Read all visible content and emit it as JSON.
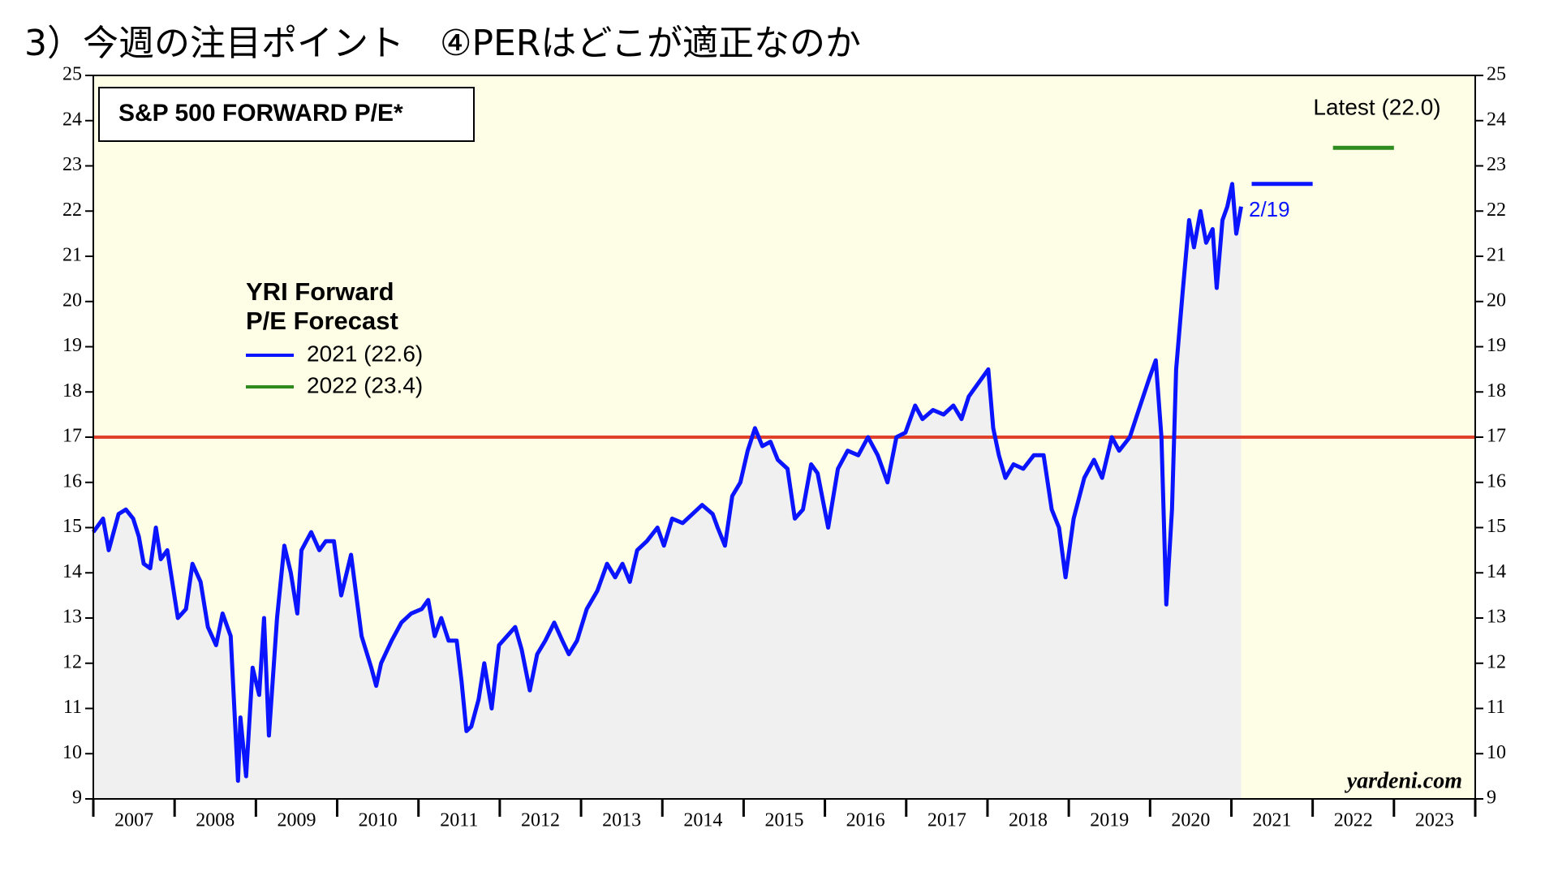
{
  "header": "3）今週の注目ポイント　④PERはどこが適正なのか",
  "chart_data": {
    "type": "line",
    "title": "S&P 500 FORWARD P/E*",
    "xlim": [
      2007,
      2024
    ],
    "x_boundaries": [
      2007,
      2008,
      2009,
      2010,
      2011,
      2012,
      2013,
      2014,
      2015,
      2016,
      2017,
      2018,
      2019,
      2020,
      2021,
      2022,
      2023,
      2024
    ],
    "xticks": [
      {
        "value": 2007.5,
        "label": "2007"
      },
      {
        "value": 2008.5,
        "label": "2008"
      },
      {
        "value": 2009.5,
        "label": "2009"
      },
      {
        "value": 2010.5,
        "label": "2010"
      },
      {
        "value": 2011.5,
        "label": "2011"
      },
      {
        "value": 2012.5,
        "label": "2012"
      },
      {
        "value": 2013.5,
        "label": "2013"
      },
      {
        "value": 2014.5,
        "label": "2014"
      },
      {
        "value": 2015.5,
        "label": "2015"
      },
      {
        "value": 2016.5,
        "label": "2016"
      },
      {
        "value": 2017.5,
        "label": "2017"
      },
      {
        "value": 2018.5,
        "label": "2018"
      },
      {
        "value": 2019.5,
        "label": "2019"
      },
      {
        "value": 2020.5,
        "label": "2020"
      },
      {
        "value": 2021.5,
        "label": "2021"
      },
      {
        "value": 2022.5,
        "label": "2022"
      },
      {
        "value": 2023.5,
        "label": "2023"
      }
    ],
    "ylim": [
      9,
      25
    ],
    "yticks": [
      9,
      10,
      11,
      12,
      13,
      14,
      15,
      16,
      17,
      18,
      19,
      20,
      21,
      22,
      23,
      24,
      25
    ],
    "reference_line": {
      "value": 17,
      "color": "#e0412a"
    },
    "series": [
      {
        "color": "#0a14ff",
        "x": [
          2007.0,
          2007.12,
          2007.19,
          2007.31,
          2007.4,
          2007.49,
          2007.56,
          2007.62,
          2007.7,
          2007.77,
          2007.83,
          2007.91,
          2008.04,
          2008.14,
          2008.22,
          2008.32,
          2008.41,
          2008.51,
          2008.59,
          2008.69,
          2008.78,
          2008.81,
          2008.88,
          2008.96,
          2009.04,
          2009.1,
          2009.16,
          2009.26,
          2009.35,
          2009.43,
          2009.51,
          2009.56,
          2009.68,
          2009.78,
          2009.86,
          2009.96,
          2010.05,
          2010.17,
          2010.3,
          2010.42,
          2010.48,
          2010.54,
          2010.67,
          2010.79,
          2010.91,
          2011.04,
          2011.12,
          2011.2,
          2011.28,
          2011.37,
          2011.47,
          2011.53,
          2011.59,
          2011.65,
          2011.74,
          2011.81,
          2011.9,
          2011.99,
          2012.09,
          2012.19,
          2012.27,
          2012.37,
          2012.46,
          2012.56,
          2012.67,
          2012.77,
          2012.85,
          2012.95,
          2013.07,
          2013.2,
          2013.32,
          2013.42,
          2013.51,
          2013.6,
          2013.69,
          2013.81,
          2013.94,
          2014.02,
          2014.12,
          2014.25,
          2014.37,
          2014.49,
          2014.62,
          2014.68,
          2014.77,
          2014.86,
          2014.96,
          2015.05,
          2015.14,
          2015.23,
          2015.33,
          2015.42,
          2015.54,
          2015.63,
          2015.73,
          2015.83,
          2015.91,
          2016.04,
          2016.16,
          2016.28,
          2016.41,
          2016.53,
          2016.65,
          2016.77,
          2016.88,
          2016.99,
          2017.11,
          2017.2,
          2017.33,
          2017.46,
          2017.58,
          2017.68,
          2017.77,
          2017.89,
          2018.01,
          2018.07,
          2018.14,
          2018.22,
          2018.32,
          2018.44,
          2018.57,
          2018.69,
          2018.79,
          2018.88,
          2018.96,
          2019.06,
          2019.19,
          2019.31,
          2019.41,
          2019.53,
          2019.62,
          2019.75,
          2019.86,
          2019.99,
          2020.07,
          2020.14,
          2020.2,
          2020.27,
          2020.32,
          2020.4,
          2020.48,
          2020.54,
          2020.62,
          2020.69,
          2020.77,
          2020.82,
          2020.89,
          2020.95,
          2021.01,
          2021.06,
          2021.12
        ],
        "values": [
          14.9,
          15.2,
          14.5,
          15.3,
          15.4,
          15.2,
          14.8,
          14.2,
          14.1,
          15.0,
          14.3,
          14.5,
          13.0,
          13.2,
          14.2,
          13.8,
          12.8,
          12.4,
          13.1,
          12.6,
          9.4,
          10.8,
          9.5,
          11.9,
          11.3,
          13.0,
          10.4,
          13.0,
          14.6,
          14.0,
          13.1,
          14.5,
          14.9,
          14.5,
          14.7,
          14.7,
          13.5,
          14.4,
          12.6,
          11.9,
          11.5,
          12.0,
          12.5,
          12.9,
          13.1,
          13.2,
          13.4,
          12.6,
          13.0,
          12.5,
          12.5,
          11.6,
          10.5,
          10.6,
          11.2,
          12.0,
          11.0,
          12.4,
          12.6,
          12.8,
          12.3,
          11.4,
          12.2,
          12.5,
          12.9,
          12.5,
          12.2,
          12.5,
          13.2,
          13.6,
          14.2,
          13.9,
          14.2,
          13.8,
          14.5,
          14.7,
          15.0,
          14.6,
          15.2,
          15.1,
          15.3,
          15.5,
          15.3,
          15.0,
          14.6,
          15.7,
          16.0,
          16.7,
          17.2,
          16.8,
          16.9,
          16.5,
          16.3,
          15.2,
          15.4,
          16.4,
          16.2,
          15.0,
          16.3,
          16.7,
          16.6,
          17.0,
          16.6,
          16.0,
          17.0,
          17.1,
          17.7,
          17.4,
          17.6,
          17.5,
          17.7,
          17.4,
          17.9,
          18.2,
          18.5,
          17.2,
          16.6,
          16.1,
          16.4,
          16.3,
          16.6,
          16.6,
          15.4,
          15.0,
          13.9,
          15.2,
          16.1,
          16.5,
          16.1,
          17.0,
          16.7,
          17.0,
          17.6,
          18.3,
          18.7,
          17.0,
          13.3,
          15.4,
          18.5,
          20.2,
          21.8,
          21.2,
          22.0,
          21.3,
          21.6,
          20.3,
          21.8,
          22.1,
          22.6,
          21.5,
          22.1
        ]
      }
    ],
    "legend_title": [
      "YRI Forward",
      "P/E Forecast"
    ],
    "forecasts": [
      {
        "name": "2021 (22.6)",
        "color": "#0a14ff",
        "value": 22.6,
        "x": [
          2021.25,
          2022.0
        ]
      },
      {
        "name": "2022 (23.4)",
        "color": "#2e8b1e",
        "value": 23.4,
        "x": [
          2022.25,
          2023.0
        ]
      }
    ],
    "annotations": {
      "latest": "Latest (22.0)",
      "date": "2/19",
      "source": "yardeni.com"
    }
  }
}
